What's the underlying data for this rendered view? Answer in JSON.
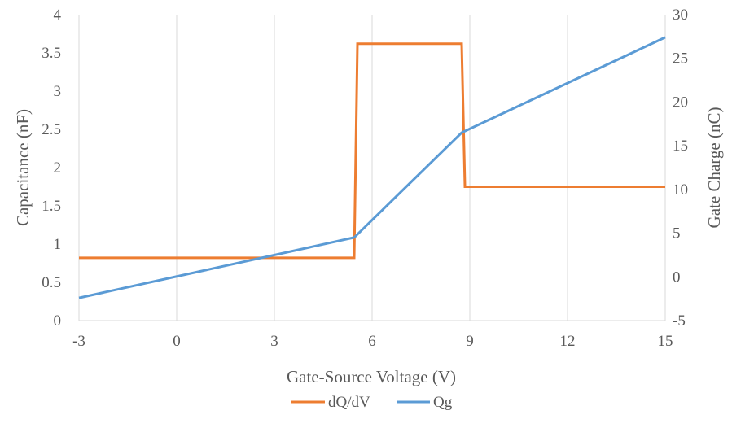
{
  "chart_data": {
    "type": "line",
    "xlabel": "Gate-Source Voltage (V)",
    "ylabel_left": "Capacitance (nF)",
    "ylabel_right": "Gate Charge (nC)",
    "xlim": [
      -3,
      15
    ],
    "ylim_left": [
      0,
      4
    ],
    "ylim_right": [
      -5,
      30
    ],
    "x_ticks": [
      "-3",
      "0",
      "3",
      "6",
      "9",
      "12",
      "15"
    ],
    "x_tick_values": [
      -3,
      0,
      3,
      6,
      9,
      12,
      15
    ],
    "y_left_ticks": [
      "0",
      "0.5",
      "1",
      "1.5",
      "2",
      "2.5",
      "3",
      "3.5",
      "4"
    ],
    "y_left_tick_values": [
      0,
      0.5,
      1,
      1.5,
      2,
      2.5,
      3,
      3.5,
      4
    ],
    "y_right_ticks": [
      "-5",
      "0",
      "5",
      "10",
      "15",
      "20",
      "25",
      "30"
    ],
    "y_right_tick_values": [
      -5,
      0,
      5,
      10,
      15,
      20,
      25,
      30
    ],
    "grid": "vertical",
    "legend_position": "bottom",
    "series": [
      {
        "name": "dQ/dV",
        "axis": "left",
        "color": "#ED7D31",
        "x": [
          -3,
          5.45,
          5.55,
          8.75,
          8.85,
          15
        ],
        "y": [
          0.82,
          0.82,
          3.62,
          3.62,
          1.75,
          1.75
        ]
      },
      {
        "name": "Qg",
        "axis": "right",
        "color": "#5B9BD5",
        "x": [
          -3,
          5.45,
          8.75,
          15
        ],
        "y": [
          -2.4,
          4.5,
          16.5,
          27.4
        ]
      }
    ]
  }
}
